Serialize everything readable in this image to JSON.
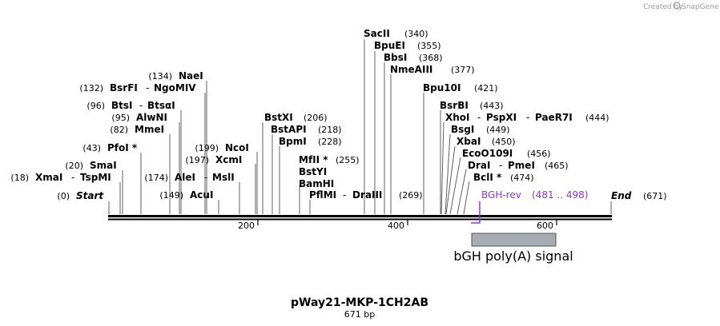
{
  "credit": {
    "prefix": "Created by",
    "brand": "SnapGene"
  },
  "plasmid": {
    "name": "pWay21-MKP-1CH2AB",
    "length_label": "671 bp",
    "length_bp": 671
  },
  "colors": {
    "primer": "#8e35d6",
    "feature_fill": "#a7abb2",
    "backbone": "#000000"
  },
  "ticks": [
    {
      "bp": 200,
      "label": "200"
    },
    {
      "bp": 400,
      "label": "400"
    },
    {
      "bp": 600,
      "label": "600"
    }
  ],
  "enzymes": [
    {
      "num": "(0)",
      "name": "Start",
      "name2": "",
      "italic": true
    },
    {
      "num": "(671)",
      "name": "End",
      "name2": "",
      "italic": true
    },
    {
      "num": "(18)",
      "name": "XmaI",
      "name2": "TspMI"
    },
    {
      "num": "(20)",
      "name": "SmaI",
      "name2": ""
    },
    {
      "num": "(43)",
      "name": "PfoI *",
      "name2": ""
    },
    {
      "num": "(82)",
      "name": "MmeI",
      "name2": ""
    },
    {
      "num": "(95)",
      "name": "AlwNI",
      "name2": ""
    },
    {
      "num": "(96)",
      "name": "BtsI",
      "name2": "BtsαI"
    },
    {
      "num": "(132)",
      "name": "BsrFI",
      "name2": "NgoMIV"
    },
    {
      "num": "(134)",
      "name": "NaeI",
      "name2": ""
    },
    {
      "num": "(149)",
      "name": "AcuI",
      "name2": ""
    },
    {
      "num": "(174)",
      "name": "AleI",
      "name2": "MslI"
    },
    {
      "num": "(197)",
      "name": "XcmI",
      "name2": ""
    },
    {
      "num": "(199)",
      "name": "NcoI",
      "name2": ""
    },
    {
      "num": "(206)",
      "name": "BstXI",
      "name2": ""
    },
    {
      "num": "(218)",
      "name": "BstAPI",
      "name2": ""
    },
    {
      "num": "(228)",
      "name": "BpmI",
      "name2": ""
    },
    {
      "num": "(255)",
      "name": "MfII *",
      "name2": ""
    },
    {
      "num": "",
      "name": "BstYI",
      "name2": ""
    },
    {
      "num": "",
      "name": "BamHI",
      "name2": ""
    },
    {
      "num": "(269)",
      "name": "PflMI",
      "name2": "DraIII"
    },
    {
      "num": "(340)",
      "name": "SacII",
      "name2": ""
    },
    {
      "num": "(355)",
      "name": "BpuEI",
      "name2": ""
    },
    {
      "num": "(368)",
      "name": "BbsI",
      "name2": ""
    },
    {
      "num": "(377)",
      "name": "NmeAIII",
      "name2": ""
    },
    {
      "num": "(421)",
      "name": "Bpu10I",
      "name2": ""
    },
    {
      "num": "(443)",
      "name": "BsrBI",
      "name2": ""
    },
    {
      "num": "(444)",
      "name": "XhoI",
      "name2": "PspXI",
      "name3": "PaeR7I"
    },
    {
      "num": "(449)",
      "name": "BsgI",
      "name2": ""
    },
    {
      "num": "(450)",
      "name": "XbaI",
      "name2": ""
    },
    {
      "num": "(456)",
      "name": "EcoO109I",
      "name2": ""
    },
    {
      "num": "(465)",
      "name": "DraI",
      "name2": "PmeI"
    },
    {
      "num": "(474)",
      "name": "BclI *",
      "name2": ""
    }
  ],
  "primer": {
    "name": "BGH-rev",
    "range": "(481 .. 498)"
  },
  "feature": {
    "name": "bGH poly(A) signal"
  }
}
